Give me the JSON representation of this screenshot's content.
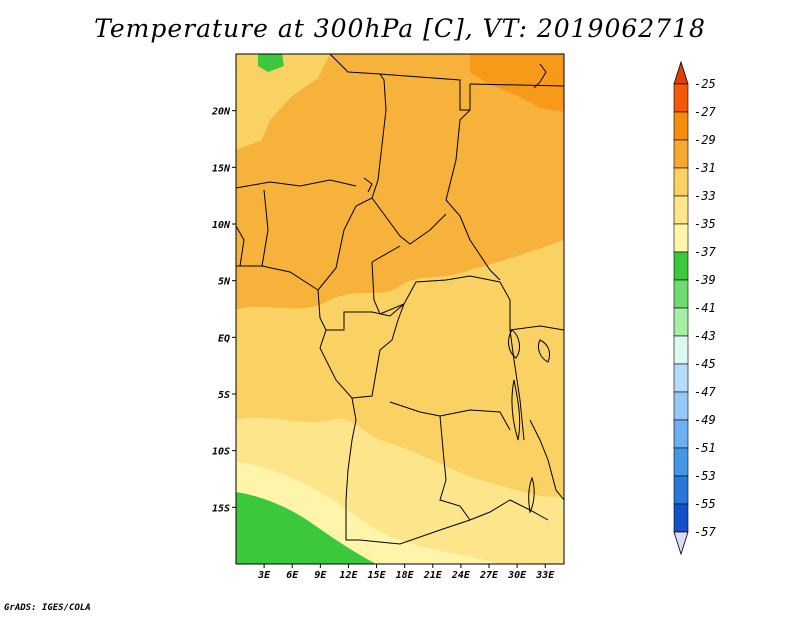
{
  "title": "Temperature at 300hPa [C], VT: 2019062718",
  "footer": "GrADS: IGES/COLA",
  "map": {
    "lon_range": [
      0,
      35
    ],
    "lat_range": [
      -20,
      25
    ],
    "lat_ticks": [
      {
        "lat": 20,
        "label": "20N"
      },
      {
        "lat": 15,
        "label": "15N"
      },
      {
        "lat": 10,
        "label": "10N"
      },
      {
        "lat": 5,
        "label": "5N"
      },
      {
        "lat": 0,
        "label": "EQ"
      },
      {
        "lat": -5,
        "label": "5S"
      },
      {
        "lat": -10,
        "label": "10S"
      },
      {
        "lat": -15,
        "label": "15S"
      }
    ],
    "lon_ticks": [
      {
        "lon": 3,
        "label": "3E"
      },
      {
        "lon": 6,
        "label": "6E"
      },
      {
        "lon": 9,
        "label": "9E"
      },
      {
        "lon": 12,
        "label": "12E"
      },
      {
        "lon": 15,
        "label": "15E"
      },
      {
        "lon": 18,
        "label": "18E"
      },
      {
        "lon": 21,
        "label": "21E"
      },
      {
        "lon": 24,
        "label": "24E"
      },
      {
        "lon": 27,
        "label": "27E"
      },
      {
        "lon": 30,
        "label": "30E"
      },
      {
        "lon": 33,
        "label": "33E"
      }
    ]
  },
  "colorbar": {
    "levels": [
      {
        "label": "-25",
        "color": "#f05a0a"
      },
      {
        "label": "-27",
        "color": "#f58c0a"
      },
      {
        "label": "-29",
        "color": "#f7a830"
      },
      {
        "label": "-31",
        "color": "#fad264"
      },
      {
        "label": "-33",
        "color": "#fde58c"
      },
      {
        "label": "-35",
        "color": "#fef5aa"
      },
      {
        "label": "-37",
        "color": "#3cc83c"
      },
      {
        "label": "-39",
        "color": "#6edc6e"
      },
      {
        "label": "-41",
        "color": "#a5eea5"
      },
      {
        "label": "-43",
        "color": "#dcf8f0"
      },
      {
        "label": "-45",
        "color": "#b4dcfa"
      },
      {
        "label": "-47",
        "color": "#96c8f5"
      },
      {
        "label": "-49",
        "color": "#6eaff0"
      },
      {
        "label": "-51",
        "color": "#4696e6"
      },
      {
        "label": "-53",
        "color": "#2878dc"
      },
      {
        "label": "-55",
        "color": "#1450c8"
      },
      {
        "label": "-57",
        "color": "#0a1478"
      }
    ],
    "top_arrow_color": "#e63c0a",
    "bottom_arrow_color": "#dcdcf5"
  }
}
